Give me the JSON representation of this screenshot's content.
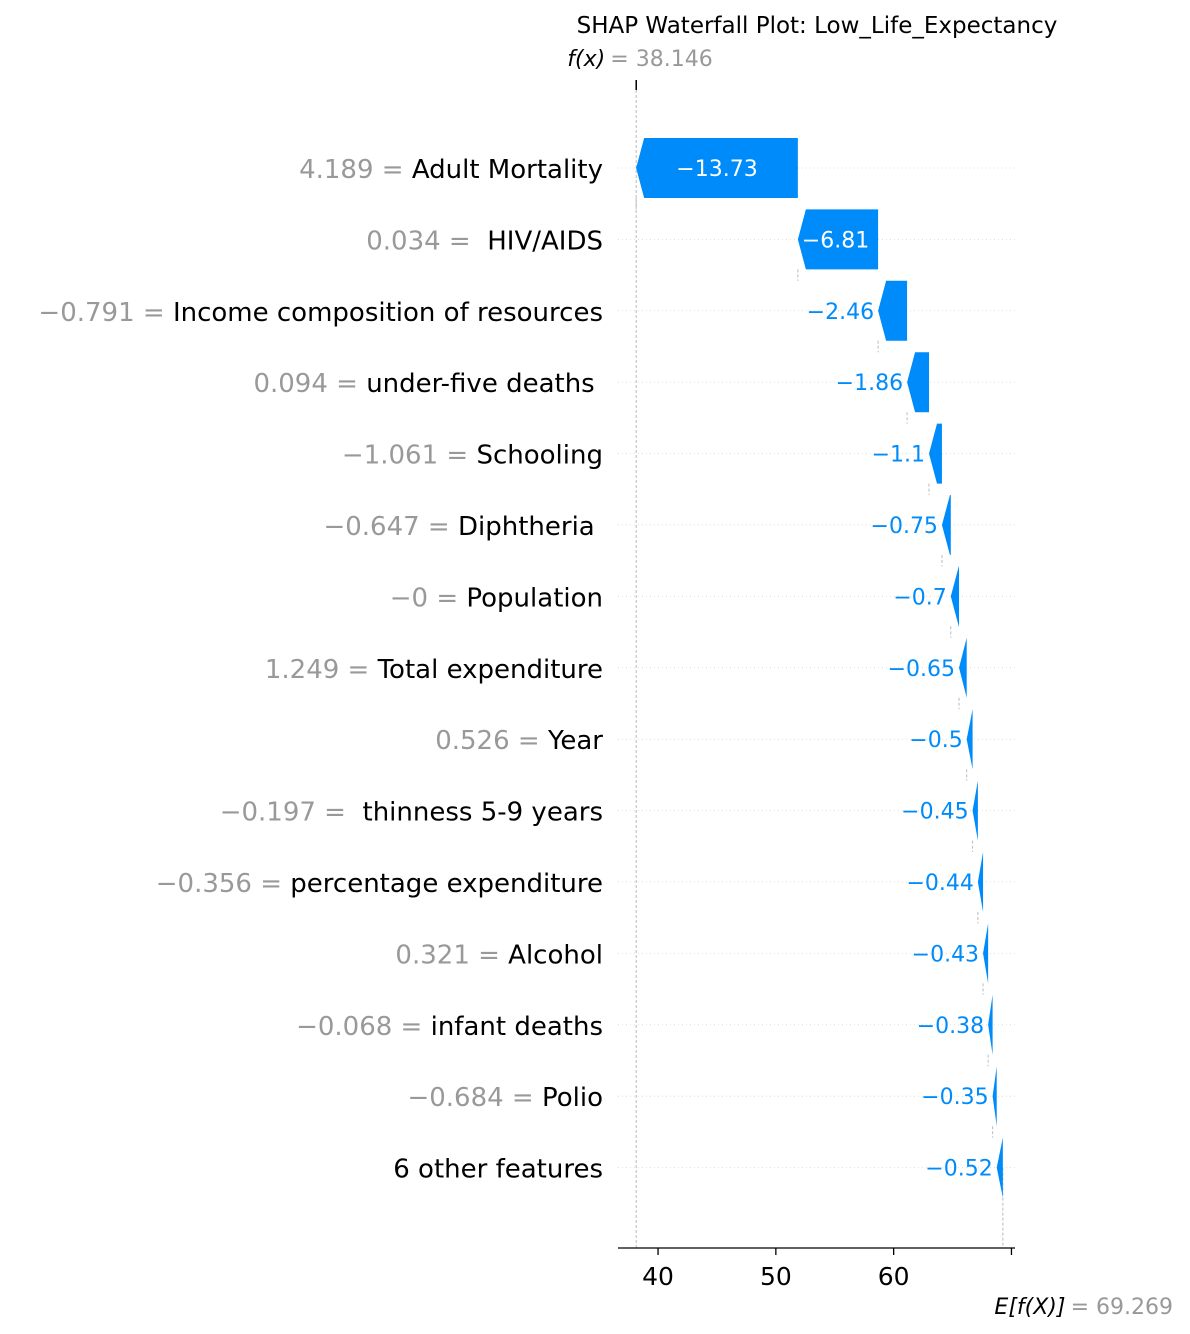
{
  "chart_data": {
    "type": "waterfall",
    "title": "SHAP Waterfall Plot: Low_Life_Expectancy",
    "fx": {
      "label": "f(x)",
      "value": "38.146",
      "number": 38.146
    },
    "base": {
      "label": "E[f(X)]",
      "value": "69.269",
      "number": 69.269
    },
    "xlim": [
      36.6,
      70.3
    ],
    "x_ticks": [
      40,
      50,
      60,
      70
    ],
    "x_tick_labels": [
      "40",
      "50",
      "60",
      ""
    ],
    "colors": {
      "negative": "#008bfb",
      "feature_value": "#999999",
      "text": "#000000"
    },
    "features": [
      {
        "value": "4.189",
        "name": "Adult Mortality",
        "shap": -13.73,
        "shap_label": "−13.73"
      },
      {
        "value": "0.034",
        "name": " HIV/AIDS",
        "shap": -6.81,
        "shap_label": "−6.81"
      },
      {
        "value": "−0.791",
        "name": "Income composition of resources",
        "shap": -2.46,
        "shap_label": "−2.46"
      },
      {
        "value": "0.094",
        "name": "under-five deaths ",
        "shap": -1.86,
        "shap_label": "−1.86"
      },
      {
        "value": "−1.061",
        "name": "Schooling",
        "shap": -1.1,
        "shap_label": "−1.1"
      },
      {
        "value": "−0.647",
        "name": "Diphtheria ",
        "shap": -0.75,
        "shap_label": "−0.75"
      },
      {
        "value": "−0",
        "name": "Population",
        "shap": -0.7,
        "shap_label": "−0.7"
      },
      {
        "value": "1.249",
        "name": "Total expenditure",
        "shap": -0.65,
        "shap_label": "−0.65"
      },
      {
        "value": "0.526",
        "name": "Year",
        "shap": -0.5,
        "shap_label": "−0.5"
      },
      {
        "value": "−0.197",
        "name": " thinness 5-9 years",
        "shap": -0.45,
        "shap_label": "−0.45"
      },
      {
        "value": "−0.356",
        "name": "percentage expenditure",
        "shap": -0.44,
        "shap_label": "−0.44"
      },
      {
        "value": "0.321",
        "name": "Alcohol",
        "shap": -0.43,
        "shap_label": "−0.43"
      },
      {
        "value": "−0.068",
        "name": "infant deaths",
        "shap": -0.38,
        "shap_label": "−0.38"
      },
      {
        "value": "−0.684",
        "name": "Polio",
        "shap": -0.35,
        "shap_label": "−0.35"
      },
      {
        "value": "",
        "name": "6 other features",
        "shap": -0.52,
        "shap_label": "−0.52"
      }
    ]
  }
}
